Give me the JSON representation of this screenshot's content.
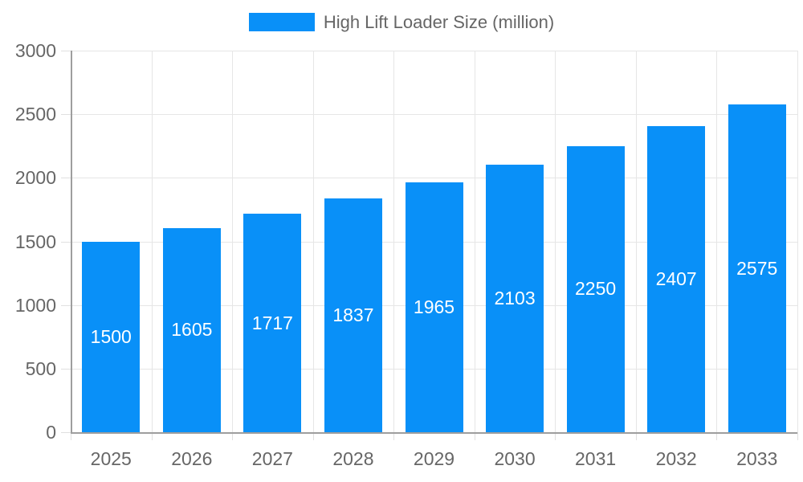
{
  "legend": {
    "label": "High Lift Loader Size (million)",
    "swatch_color": "#0990f8"
  },
  "chart_data": {
    "type": "bar",
    "title": "High Lift Loader Size (million)",
    "series_name": "High Lift Loader Size (million)",
    "categories": [
      "2025",
      "2026",
      "2027",
      "2028",
      "2029",
      "2030",
      "2031",
      "2032",
      "2033"
    ],
    "values": [
      1500,
      1605,
      1717,
      1837,
      1965,
      2103,
      2250,
      2407,
      2575
    ],
    "xlabel": "",
    "ylabel": "",
    "ylim": [
      0,
      3000
    ],
    "y_ticks": [
      0,
      500,
      1000,
      1500,
      2000,
      2500,
      3000
    ],
    "grid": "both",
    "legend_position": "top",
    "bar_color": "#0990f8",
    "value_label_color": "#ffffff",
    "tick_label_color": "#666666",
    "grid_color": "#e6e6e6",
    "axis_color": "#9e9e9e",
    "background_color": "#ffffff"
  }
}
